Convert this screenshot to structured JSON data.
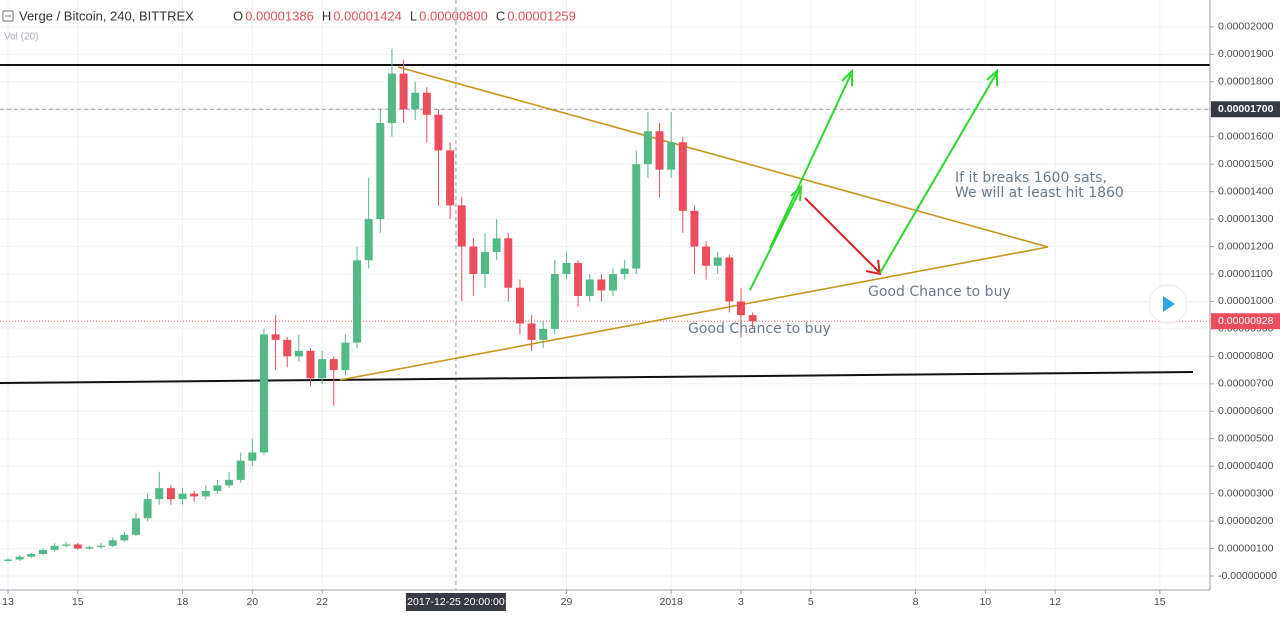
{
  "chart_data": {
    "type": "candlestick",
    "title": "Verge / Bitcoin, 240, BITTREX",
    "header_values": [
      {
        "key": "O",
        "text": "0.00001386"
      },
      {
        "key": "H",
        "text": "0.00001424"
      },
      {
        "key": "L",
        "text": "0.00000800"
      },
      {
        "key": "C",
        "text": "0.00001259"
      }
    ],
    "indicator": "Vol (20)",
    "up_color": "#53b987",
    "down_color": "#eb4d5c",
    "x": [
      "2017-12-13 00:00",
      "2017-12-13 08:00",
      "2017-12-13 16:00",
      "2017-12-14 00:00",
      "2017-12-14 08:00",
      "2017-12-14 16:00",
      "2017-12-15 00:00",
      "2017-12-15 08:00",
      "2017-12-15 16:00",
      "2017-12-16 00:00",
      "2017-12-16 08:00",
      "2017-12-16 16:00",
      "2017-12-17 00:00",
      "2017-12-17 08:00",
      "2017-12-17 16:00",
      "2017-12-18 00:00",
      "2017-12-18 08:00",
      "2017-12-18 16:00",
      "2017-12-19 00:00",
      "2017-12-19 08:00",
      "2017-12-19 16:00",
      "2017-12-20 00:00",
      "2017-12-20 08:00",
      "2017-12-20 16:00",
      "2017-12-21 00:00",
      "2017-12-21 08:00",
      "2017-12-21 16:00",
      "2017-12-22 00:00",
      "2017-12-22 08:00",
      "2017-12-22 16:00",
      "2017-12-23 00:00",
      "2017-12-23 08:00",
      "2017-12-23 16:00",
      "2017-12-24 00:00",
      "2017-12-24 08:00",
      "2017-12-24 16:00",
      "2017-12-25 00:00",
      "2017-12-25 08:00",
      "2017-12-25 16:00",
      "2017-12-26 00:00",
      "2017-12-26 08:00",
      "2017-12-26 16:00",
      "2017-12-27 00:00",
      "2017-12-27 08:00",
      "2017-12-27 16:00",
      "2017-12-28 00:00",
      "2017-12-28 08:00",
      "2017-12-28 16:00",
      "2017-12-29 00:00",
      "2017-12-29 08:00",
      "2017-12-29 16:00",
      "2017-12-30 00:00",
      "2017-12-30 08:00",
      "2017-12-30 16:00",
      "2017-12-31 00:00",
      "2017-12-31 08:00",
      "2017-12-31 16:00",
      "2018-01-01 00:00",
      "2018-01-01 08:00",
      "2018-01-01 16:00",
      "2018-01-02 00:00",
      "2018-01-02 08:00",
      "2018-01-02 16:00",
      "2018-01-03 00:00",
      "2018-01-03 08:00"
    ],
    "open": [
      5.5e-07,
      6e-07,
      7e-07,
      8e-07,
      9.5e-07,
      1.1e-06,
      1.15e-06,
      1e-06,
      1.05e-06,
      1.1e-06,
      1.3e-06,
      1.5e-06,
      2.1e-06,
      2.8e-06,
      3.2e-06,
      2.8e-06,
      3e-06,
      2.9e-06,
      3.1e-06,
      3.3e-06,
      3.5e-06,
      4.2e-06,
      4.5e-06,
      8.8e-06,
      8.6e-06,
      8e-06,
      8.2e-06,
      7.2e-06,
      7.9e-06,
      7.5e-06,
      8.5e-06,
      1.15e-05,
      1.3e-05,
      1.65e-05,
      1.83e-05,
      1.7e-05,
      1.76e-05,
      1.68e-05,
      1.55e-05,
      1.35e-05,
      1.2e-05,
      1.1e-05,
      1.18e-05,
      1.23e-05,
      1.05e-05,
      9.2e-06,
      8.6e-06,
      9e-06,
      1.1e-05,
      1.14e-05,
      1.02e-05,
      1.08e-05,
      1.04e-05,
      1.1e-05,
      1.12e-05,
      1.5e-05,
      1.62e-05,
      1.48e-05,
      1.58e-05,
      1.33e-05,
      1.2e-05,
      1.13e-05,
      1.16e-05,
      1e-05,
      9.5e-06
    ],
    "high": [
      6.5e-07,
      7.5e-07,
      8.5e-07,
      1e-06,
      1.2e-06,
      1.25e-06,
      1.2e-06,
      1.1e-06,
      1.2e-06,
      1.4e-06,
      1.6e-06,
      2.3e-06,
      3e-06,
      3.8e-06,
      3.3e-06,
      3.2e-06,
      3.1e-06,
      3.3e-06,
      3.5e-06,
      3.8e-06,
      4.5e-06,
      5e-06,
      9e-06,
      9.5e-06,
      8.7e-06,
      8.8e-06,
      8.3e-06,
      8.2e-06,
      8e-06,
      8.8e-06,
      1.2e-05,
      1.45e-05,
      1.7e-05,
      1.92e-05,
      1.88e-05,
      1.8e-05,
      1.78e-05,
      1.7e-05,
      1.58e-05,
      1.38e-05,
      1.23e-05,
      1.25e-05,
      1.3e-05,
      1.25e-05,
      1.08e-05,
      9.5e-06,
      9.3e-06,
      1.15e-05,
      1.18e-05,
      1.15e-05,
      1.1e-05,
      1.1e-05,
      1.12e-05,
      1.15e-05,
      1.55e-05,
      1.69e-05,
      1.65e-05,
      1.69e-05,
      1.6e-05,
      1.35e-05,
      1.22e-05,
      1.18e-05,
      1.17e-05,
      1.05e-05,
      9.6e-06
    ],
    "low": [
      5e-07,
      5.5e-07,
      6.5e-07,
      7.5e-07,
      9e-07,
      1.05e-06,
      9.5e-07,
      9.5e-07,
      1e-06,
      1.05e-06,
      1.25e-06,
      1.45e-06,
      2e-06,
      2.6e-06,
      2.6e-06,
      2.6e-06,
      2.7e-06,
      2.8e-06,
      3e-06,
      3.2e-06,
      3.4e-06,
      4e-06,
      4.4e-06,
      7.5e-06,
      7.6e-06,
      7.8e-06,
      6.9e-06,
      7e-06,
      6.2e-06,
      7.3e-06,
      8.3e-06,
      1.12e-05,
      1.25e-05,
      1.6e-05,
      1.65e-05,
      1.66e-05,
      1.58e-05,
      1.35e-05,
      1.3e-05,
      1e-05,
      1.02e-05,
      1.05e-05,
      1.15e-05,
      1e-05,
      8.8e-06,
      8.2e-06,
      8.3e-06,
      8.8e-06,
      1.08e-05,
      9.8e-06,
      1e-05,
      1e-05,
      1.02e-05,
      1.08e-05,
      1.1e-05,
      1.45e-05,
      1.38e-05,
      1.45e-05,
      1.25e-05,
      1.1e-05,
      1.08e-05,
      1.1e-05,
      9.6e-06,
      8.7e-06,
      9e-06
    ],
    "close": [
      6e-07,
      7e-07,
      8e-07,
      9.5e-07,
      1.1e-06,
      1.15e-06,
      1e-06,
      1.05e-06,
      1.1e-06,
      1.3e-06,
      1.5e-06,
      2.1e-06,
      2.8e-06,
      3.2e-06,
      2.8e-06,
      3e-06,
      2.9e-06,
      3.1e-06,
      3.3e-06,
      3.5e-06,
      4.2e-06,
      4.5e-06,
      8.8e-06,
      8.6e-06,
      8e-06,
      8.2e-06,
      7.2e-06,
      7.9e-06,
      7.5e-06,
      8.5e-06,
      1.15e-05,
      1.3e-05,
      1.65e-05,
      1.83e-05,
      1.7e-05,
      1.76e-05,
      1.68e-05,
      1.55e-05,
      1.35e-05,
      1.2e-05,
      1.1e-05,
      1.18e-05,
      1.23e-05,
      1.05e-05,
      9.2e-06,
      8.6e-06,
      9e-06,
      1.1e-05,
      1.14e-05,
      1.02e-05,
      1.08e-05,
      1.04e-05,
      1.1e-05,
      1.12e-05,
      1.5e-05,
      1.62e-05,
      1.48e-05,
      1.58e-05,
      1.33e-05,
      1.2e-05,
      1.13e-05,
      1.16e-05,
      1e-05,
      9.5e-06,
      9.28e-06
    ],
    "xlim": [
      "2017-12-12 18:30",
      "2018-01-16 10:30"
    ],
    "xticks": [
      {
        "value": "2017-12-13",
        "label": "13"
      },
      {
        "value": "2017-12-15",
        "label": "15"
      },
      {
        "value": "2017-12-18",
        "label": "18"
      },
      {
        "value": "2017-12-20",
        "label": "20"
      },
      {
        "value": "2017-12-22",
        "label": "22"
      },
      {
        "value": "2017-12-29",
        "label": "29"
      },
      {
        "value": "2018-01-01",
        "label": "2018"
      },
      {
        "value": "2018-01-03",
        "label": "3"
      },
      {
        "value": "2018-01-05",
        "label": "5"
      },
      {
        "value": "2018-01-08",
        "label": "8"
      },
      {
        "value": "2018-01-10",
        "label": "10"
      },
      {
        "value": "2018-01-12",
        "label": "12"
      },
      {
        "value": "2018-01-15",
        "label": "15"
      }
    ],
    "ylim": [
      -5.1e-07,
      2.098e-05
    ],
    "yticks": [
      {
        "value": 0,
        "label": "-0.00000000"
      },
      {
        "value": 1e-06,
        "label": "0.00000100"
      },
      {
        "value": 2e-06,
        "label": "0.00000200"
      },
      {
        "value": 3e-06,
        "label": "0.00000300"
      },
      {
        "value": 4e-06,
        "label": "0.00000400"
      },
      {
        "value": 5e-06,
        "label": "0.00000500"
      },
      {
        "value": 6e-06,
        "label": "0.00000600"
      },
      {
        "value": 7e-06,
        "label": "0.00000700"
      },
      {
        "value": 8e-06,
        "label": "0.00000800"
      },
      {
        "value": 9e-06,
        "label": "0.00000900"
      },
      {
        "value": 1e-05,
        "label": "0.00001000"
      },
      {
        "value": 1.1e-05,
        "label": "0.00001100"
      },
      {
        "value": 1.2e-05,
        "label": "0.00001200"
      },
      {
        "value": 1.3e-05,
        "label": "0.00001300"
      },
      {
        "value": 1.4e-05,
        "label": "0.00001400"
      },
      {
        "value": 1.5e-05,
        "label": "0.00001500"
      },
      {
        "value": 1.6e-05,
        "label": "0.00001600"
      },
      {
        "value": 1.7e-05,
        "label": "0.00001700"
      },
      {
        "value": 1.8e-05,
        "label": "0.00001800"
      },
      {
        "value": 1.9e-05,
        "label": "0.00001900"
      },
      {
        "value": 2e-05,
        "label": "0.00002000"
      }
    ],
    "grid": true,
    "crosshair": {
      "x": "2017-12-25 20:00:00",
      "y": {
        "value": 1.7e-05,
        "label": "0.00001700"
      }
    },
    "last_price": {
      "value": 9.28e-06,
      "label": "0.00000928"
    },
    "annotations": [
      "If it breaks 1600 sats,",
      "We will at least hit 1860",
      "Good Chance to buy",
      "Good Chance to buy"
    ]
  }
}
